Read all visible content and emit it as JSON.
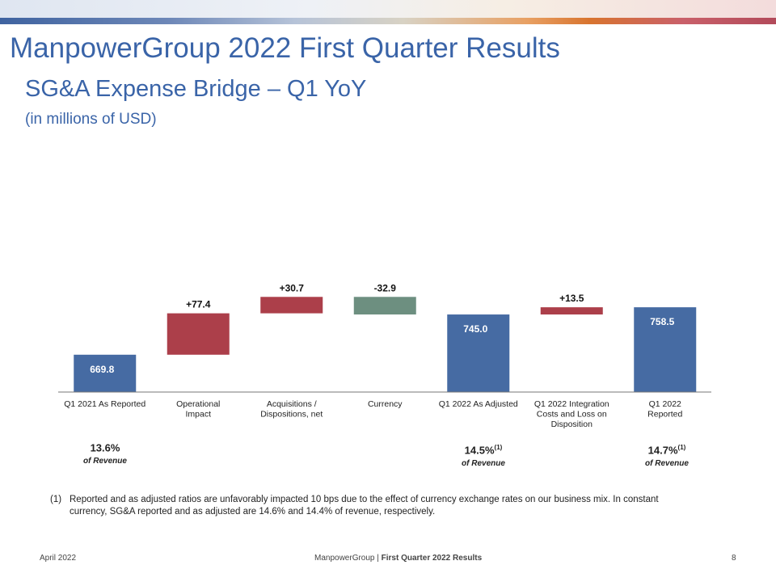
{
  "title": "ManpowerGroup 2022 First Quarter Results",
  "subtitle": "SG&A Expense Bridge – Q1 YoY",
  "units": "(in millions of USD)",
  "chart_data": {
    "type": "bar",
    "subtype": "waterfall",
    "categories": [
      "Q1 2021 As Reported",
      "Operational Impact",
      "Acquisitions / Dispositions, net",
      "Currency",
      "Q1 2022 As Adjusted",
      "Q1 2022 Integration Costs and Loss on Disposition",
      "Q1 2022 Reported"
    ],
    "category_lines": [
      [
        "Q1 2021 As Reported"
      ],
      [
        "Operational",
        "Impact"
      ],
      [
        "Acquisitions /",
        "Dispositions, net"
      ],
      [
        "Currency"
      ],
      [
        "Q1 2022 As Adjusted"
      ],
      [
        "Q1 2022 Integration",
        "Costs and Loss on",
        "Disposition"
      ],
      [
        "Q1 2022",
        "Reported"
      ]
    ],
    "values": [
      669.8,
      77.4,
      30.7,
      -32.9,
      745.0,
      13.5,
      758.5
    ],
    "kinds": [
      "total",
      "delta",
      "delta",
      "delta",
      "total",
      "delta",
      "total"
    ],
    "labels": [
      "669.8",
      "+77.4",
      "+30.7",
      "-32.9",
      "745.0",
      "+13.5",
      "758.5"
    ],
    "colors": {
      "total": "#466ba3",
      "increase": "#ac3f4a",
      "decrease": "#6d8f80"
    }
  },
  "ratios": [
    {
      "pct": "13.6%",
      "sup": "",
      "rev": "of Revenue"
    },
    {
      "pct": "14.5%",
      "sup": "(1)",
      "rev": "of Revenue"
    },
    {
      "pct": "14.7%",
      "sup": "(1)",
      "rev": "of Revenue"
    }
  ],
  "footnote": {
    "num": "(1)",
    "text": "Reported and as adjusted ratios are unfavorably impacted 10 bps due to the effect of currency exchange rates on our business mix. In constant currency, SG&A reported and as adjusted are 14.6% and 14.4% of revenue, respectively."
  },
  "footer": {
    "date": "April 2022",
    "company": "ManpowerGroup",
    "separator": " | ",
    "doc": "First Quarter 2022 Results",
    "page": "8"
  }
}
